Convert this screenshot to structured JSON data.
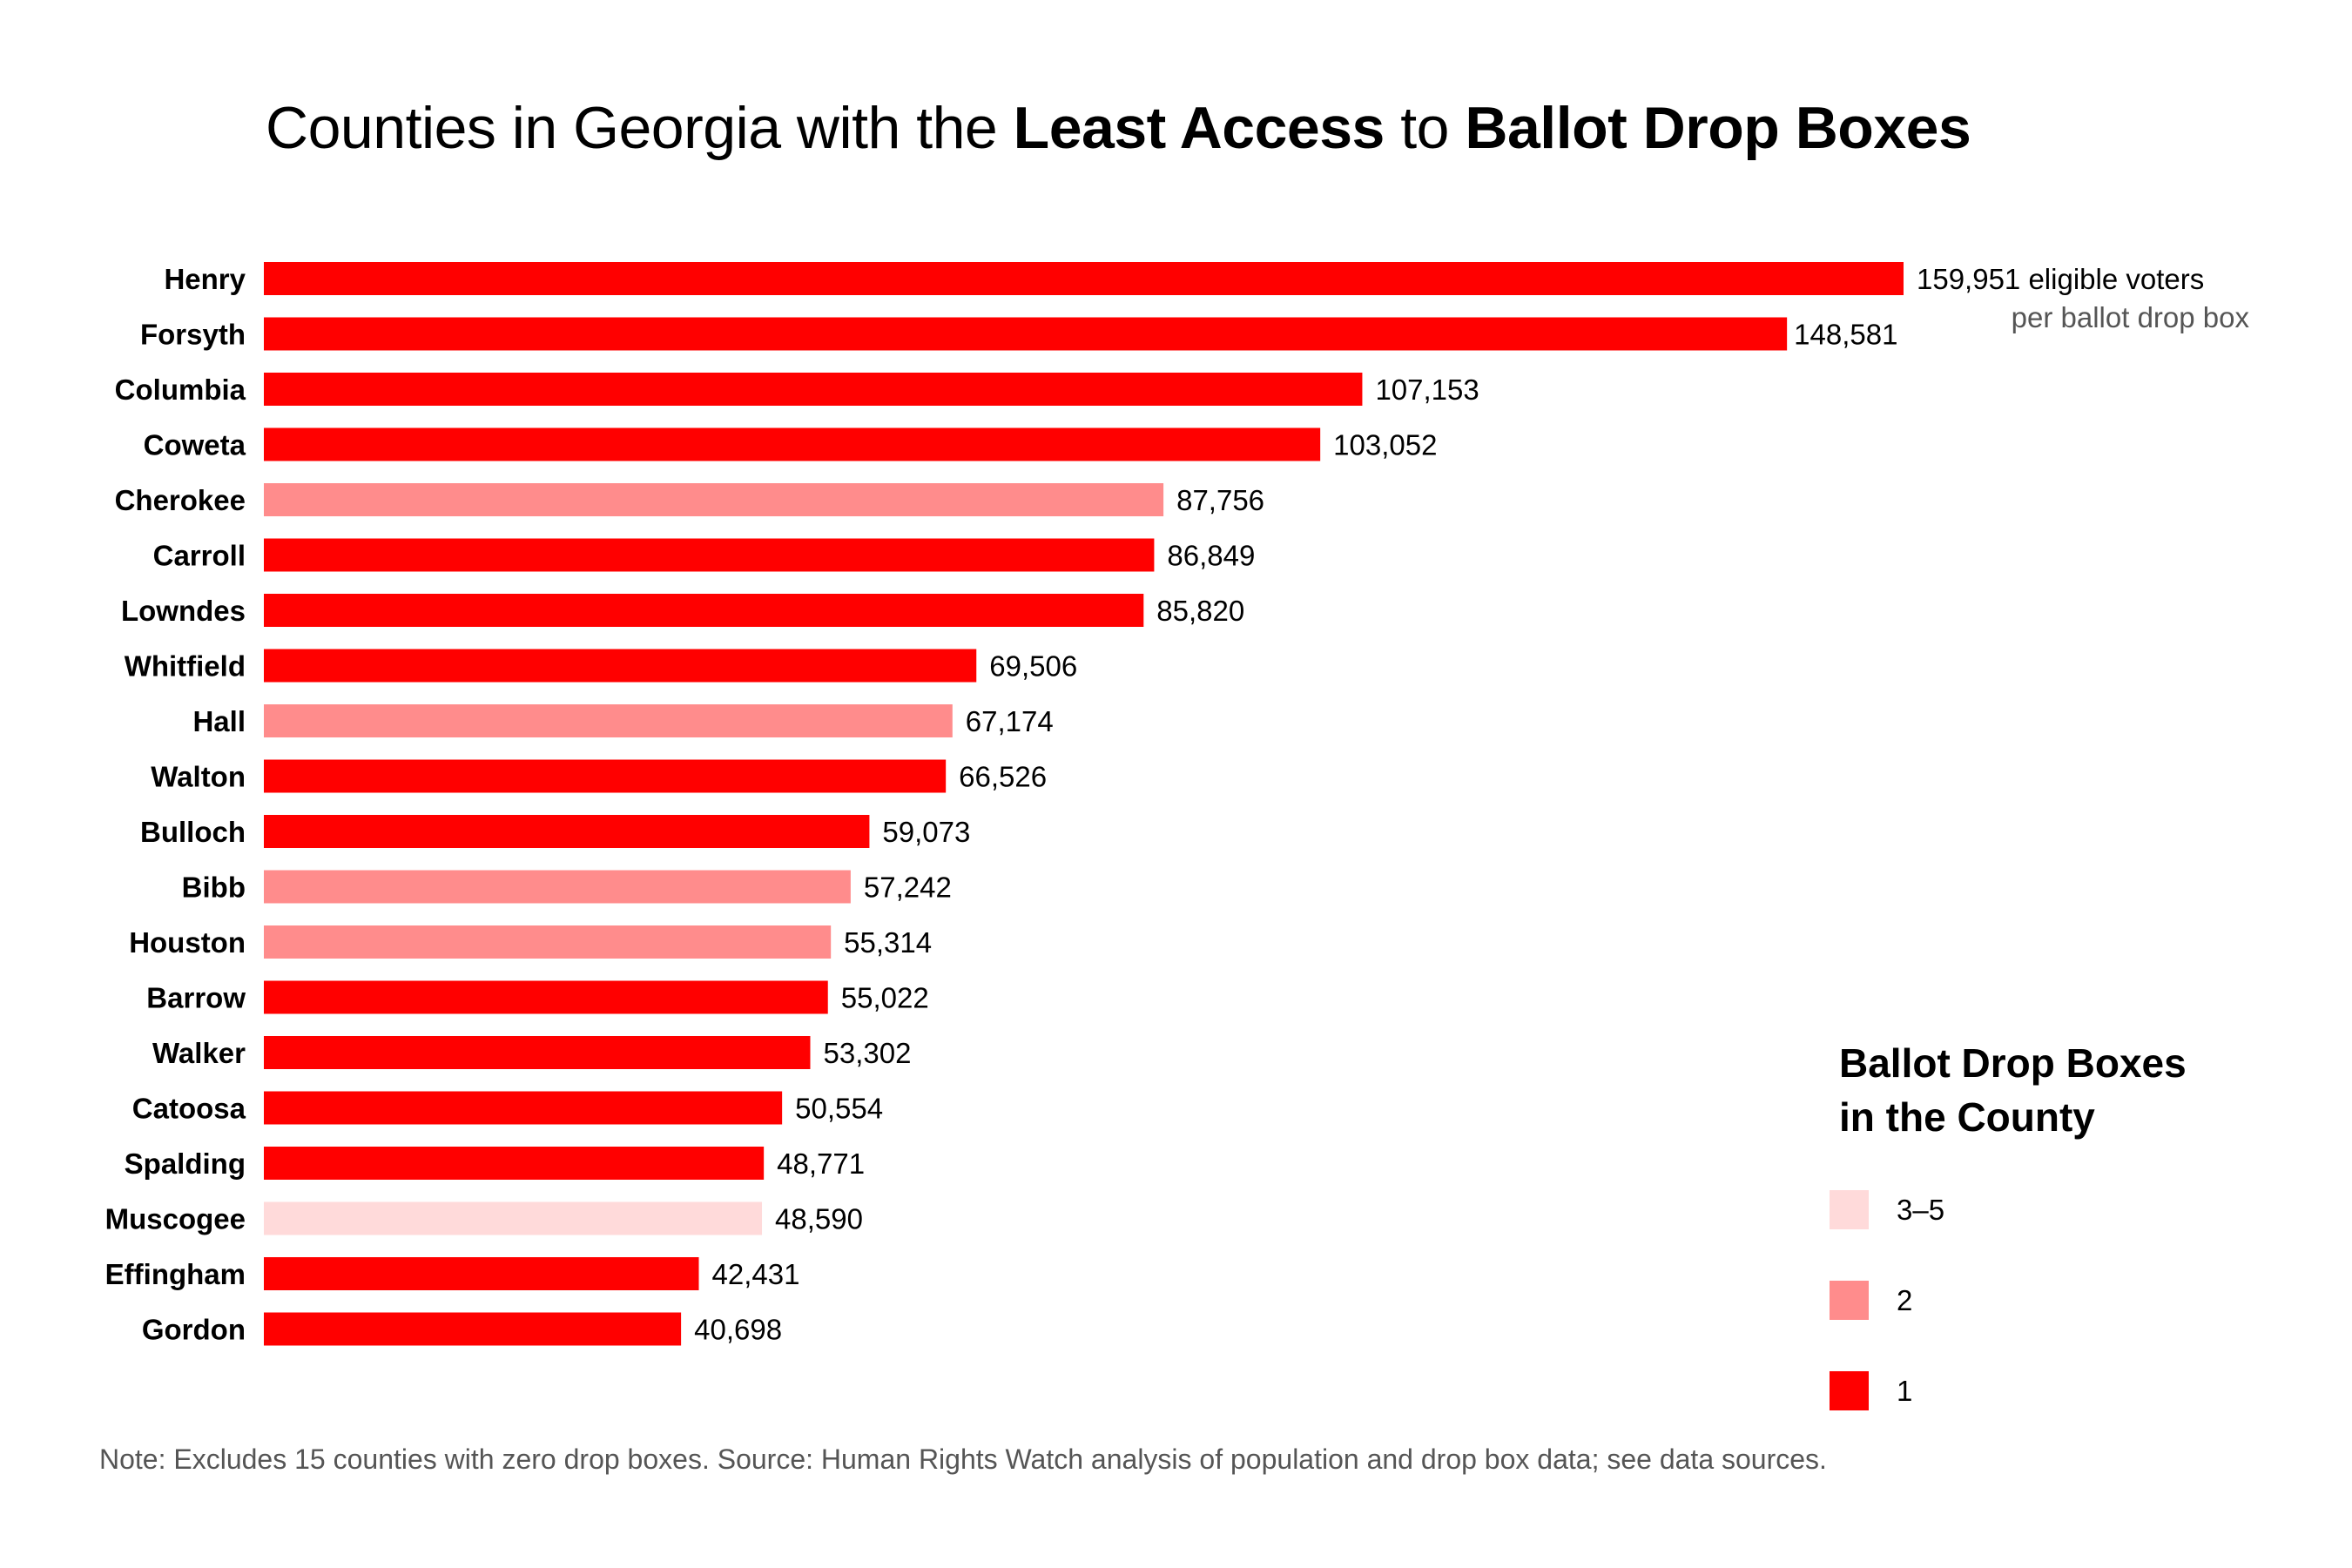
{
  "title": {
    "part1": "Counties in Georgia with the ",
    "bold1": "Least Access",
    "part2": " to ",
    "bold2": "Ballot Drop Boxes"
  },
  "colors": {
    "1": "#ff0000",
    "2": "#ff8c8c",
    "3-5": "#ffdada"
  },
  "chart_data": {
    "type": "bar",
    "orientation": "horizontal",
    "title": "Counties in Georgia with the Least Access to Ballot Drop Boxes",
    "categories": [
      "Henry",
      "Forsyth",
      "Columbia",
      "Coweta",
      "Cherokee",
      "Carroll",
      "Lowndes",
      "Whitfield",
      "Hall",
      "Walton",
      "Bulloch",
      "Bibb",
      "Houston",
      "Barrow",
      "Walker",
      "Catoosa",
      "Spalding",
      "Muscogee",
      "Effingham",
      "Gordon"
    ],
    "values": [
      159951,
      148581,
      107153,
      103052,
      87756,
      86849,
      85820,
      69506,
      67174,
      66526,
      59073,
      57242,
      55314,
      55022,
      53302,
      50554,
      48771,
      48590,
      42431,
      40698
    ],
    "value_labels": [
      "159,951",
      "148,581",
      "107,153",
      "103,052",
      "87,756",
      "86,849",
      "85,820",
      "69,506",
      "67,174",
      "66,526",
      "59,073",
      "57,242",
      "55,314",
      "55,022",
      "53,302",
      "50,554",
      "48,771",
      "48,590",
      "42,431",
      "40,698"
    ],
    "drop_box_group": [
      "1",
      "1",
      "1",
      "1",
      "2",
      "1",
      "1",
      "1",
      "2",
      "1",
      "1",
      "2",
      "2",
      "1",
      "1",
      "1",
      "1",
      "3-5",
      "1",
      "1"
    ],
    "first_label_suffix": " eligible voters",
    "first_label_subtitle": "per ballot drop box",
    "xlim": [
      0,
      159951
    ],
    "grid": false,
    "legend": {
      "title_line1": "Ballot Drop Boxes",
      "title_line2": "in the County",
      "placement": "bottom-right",
      "entries": [
        {
          "label": "3–5",
          "group": "3-5"
        },
        {
          "label": "2",
          "group": "2"
        },
        {
          "label": "1",
          "group": "1"
        }
      ]
    }
  },
  "note": "Note: Excludes 15 counties with zero drop boxes. Source: Human Rights Watch analysis of population and drop box data; see data sources."
}
